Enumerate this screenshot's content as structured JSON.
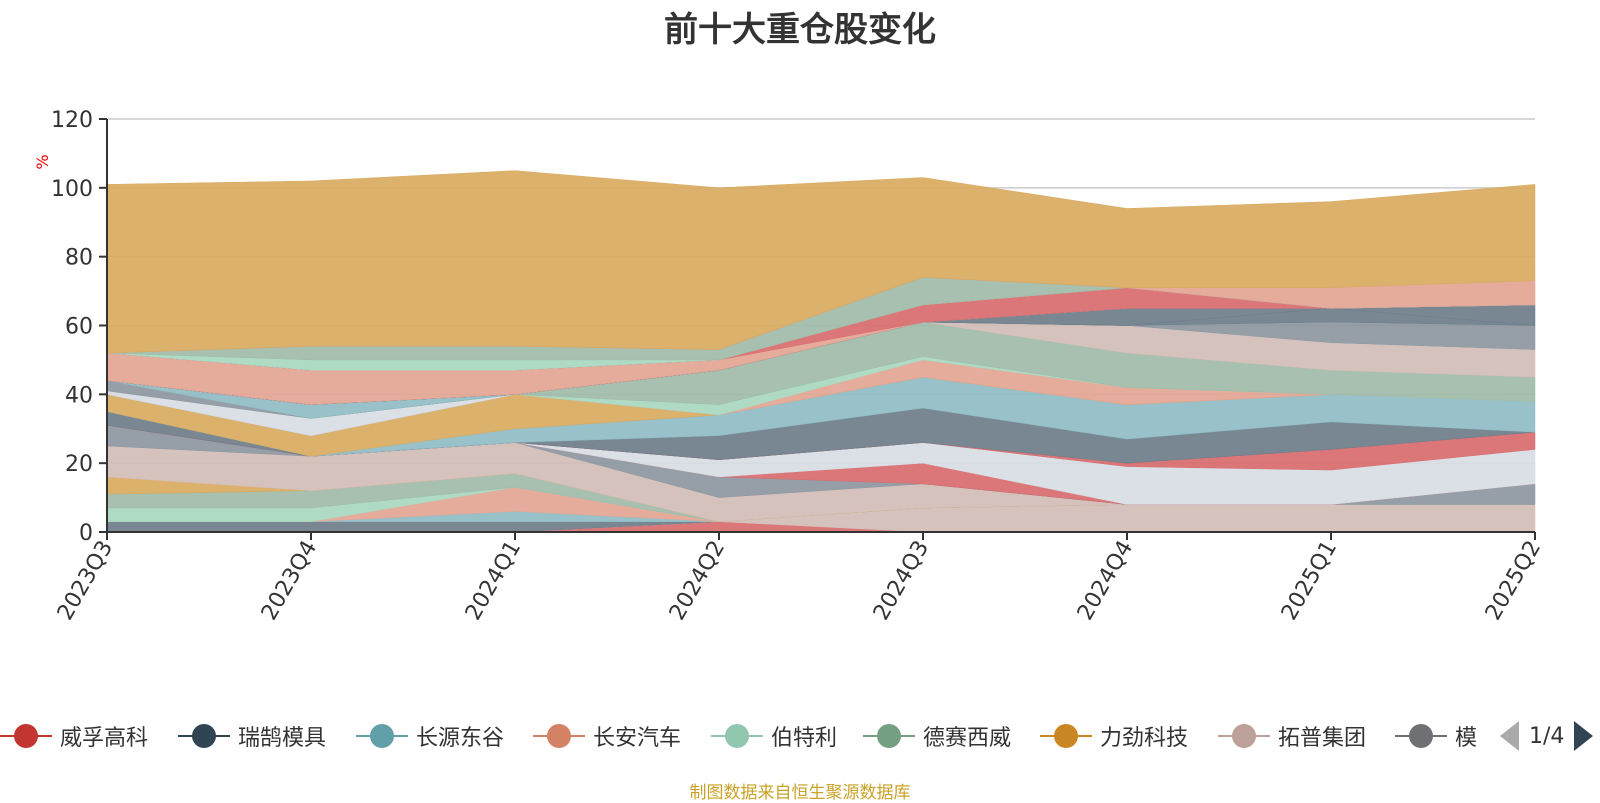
{
  "chart_data": {
    "type": "area",
    "title": "前十大重仓股变化",
    "ylabel": "%",
    "xlabel": "",
    "ylim": [
      0,
      120
    ],
    "yticks": [
      0,
      20,
      40,
      60,
      80,
      100,
      120
    ],
    "stacked": true,
    "grid": true,
    "categories": [
      "2023Q3",
      "2023Q4",
      "2024Q1",
      "2024Q2",
      "2024Q3",
      "2024Q4",
      "2025Q1",
      "2025Q2"
    ],
    "series": [
      {
        "name": "威孚高科",
        "color": "#d86b6e",
        "values": [
          0,
          0,
          0,
          3,
          0,
          0,
          0,
          0
        ]
      },
      {
        "name": "拓普集团",
        "color": "#d3bdb7",
        "values": [
          0,
          0,
          0,
          0,
          7,
          8,
          8,
          8
        ]
      },
      {
        "name": "瑞鹄模具",
        "color": "#6e7d8a",
        "values": [
          3,
          3,
          3,
          0,
          0,
          0,
          0,
          0
        ]
      },
      {
        "name": "长源东谷",
        "color": "#8fbcc4",
        "values": [
          0,
          0,
          3,
          0,
          0,
          0,
          0,
          0
        ]
      },
      {
        "name": "长安汽车",
        "color": "#e3a594",
        "values": [
          0,
          0,
          7,
          0,
          0,
          0,
          0,
          0
        ]
      },
      {
        "name": "伯特利",
        "color": "#a8d8c0",
        "values": [
          4,
          4,
          0,
          0,
          0,
          0,
          0,
          0
        ]
      },
      {
        "name": "德赛西威",
        "color": "#9fbba8",
        "values": [
          4,
          5,
          4,
          0,
          0,
          0,
          0,
          0
        ]
      },
      {
        "name": "力劲科技",
        "color": "#d9aa60",
        "values": [
          5,
          0,
          0,
          0,
          0,
          0,
          0,
          0
        ]
      },
      {
        "name": "拓普集团",
        "color": "#d3bdb7",
        "values": [
          9,
          10,
          9,
          7,
          7,
          0,
          0,
          0
        ]
      },
      {
        "name": "模具",
        "color": "#8d979f",
        "values": [
          6,
          0,
          0,
          6,
          0,
          0,
          0,
          6
        ]
      },
      {
        "name": "威孚高科",
        "color": "#d86b6e",
        "values": [
          0,
          0,
          0,
          0,
          6,
          0,
          0,
          0
        ]
      },
      {
        "name": "",
        "color": "#d7dde4",
        "values": [
          0,
          0,
          0,
          5,
          6,
          11,
          10,
          10
        ]
      },
      {
        "name": "威孚高科",
        "color": "#d86b6e",
        "values": [
          0,
          0,
          0,
          0,
          0,
          1,
          6,
          5
        ]
      },
      {
        "name": "瑞鹄模具",
        "color": "#6e7d8a",
        "values": [
          4,
          0,
          0,
          7,
          10,
          7,
          8,
          0
        ]
      },
      {
        "name": "长源东谷",
        "color": "#8fbcc4",
        "values": [
          0,
          0,
          4,
          6,
          9,
          10,
          8,
          9
        ]
      },
      {
        "name": "力劲科技",
        "color": "#d9aa60",
        "values": [
          5,
          6,
          10,
          0,
          0,
          0,
          0,
          0
        ]
      },
      {
        "name": "长安汽车",
        "color": "#e3a594",
        "values": [
          0,
          0,
          0,
          0,
          5,
          5,
          0,
          0
        ]
      },
      {
        "name": "伯特利",
        "color": "#a8d8c0",
        "values": [
          0,
          0,
          0,
          3,
          1,
          0,
          0,
          0
        ]
      },
      {
        "name": "德赛西威",
        "color": "#9fbba8",
        "values": [
          0,
          0,
          0,
          10,
          10,
          10,
          7,
          7
        ]
      },
      {
        "name": "拓普集团",
        "color": "#d3bdb7",
        "values": [
          0,
          0,
          0,
          0,
          0,
          8,
          8,
          8
        ]
      },
      {
        "name": "",
        "color": "#d7dde4",
        "values": [
          1,
          5,
          0,
          0,
          0,
          0,
          0,
          0
        ]
      },
      {
        "name": "模具",
        "color": "#8d979f",
        "values": [
          3,
          0,
          0,
          0,
          0,
          0,
          6,
          7
        ]
      },
      {
        "name": "长源东谷",
        "color": "#8fbcc4",
        "values": [
          0,
          4,
          0,
          0,
          0,
          0,
          0,
          0
        ]
      },
      {
        "name": "瑞鹄模具",
        "color": "#6e7d8a",
        "values": [
          0,
          0,
          0,
          0,
          0,
          0,
          4,
          0
        ]
      },
      {
        "name": "瑞鹄模具",
        "color": "#6e7d8a",
        "values": [
          0,
          0,
          0,
          0,
          0,
          5,
          0,
          6
        ]
      },
      {
        "name": "长安汽车",
        "color": "#e3a594",
        "values": [
          8,
          10,
          7,
          3,
          0,
          0,
          0,
          0
        ]
      },
      {
        "name": "威孚高科",
        "color": "#d86b6e",
        "values": [
          0,
          0,
          0,
          0,
          5,
          6,
          0,
          0
        ]
      },
      {
        "name": "伯特利",
        "color": "#a8d8c0",
        "values": [
          0,
          3,
          3,
          0,
          0,
          0,
          0,
          0
        ]
      },
      {
        "name": "德赛西威",
        "color": "#9fbba8",
        "values": [
          0,
          4,
          4,
          3,
          8,
          0,
          0,
          0
        ]
      },
      {
        "name": "长安汽车",
        "color": "#e3a594",
        "values": [
          0,
          0,
          0,
          0,
          0,
          0,
          6,
          7
        ]
      },
      {
        "name": "力劲科技",
        "color": "#d9aa60",
        "values": [
          49,
          48,
          51,
          47,
          29,
          23,
          25,
          28
        ]
      }
    ]
  },
  "legend": {
    "items": [
      {
        "label": "威孚高科",
        "color": "#c23531"
      },
      {
        "label": "瑞鹄模具",
        "color": "#2f4554"
      },
      {
        "label": "长源东谷",
        "color": "#61a0a8"
      },
      {
        "label": "长安汽车",
        "color": "#d48265"
      },
      {
        "label": "伯特利",
        "color": "#91c7ae"
      },
      {
        "label": "德赛西威",
        "color": "#749f83"
      },
      {
        "label": "力劲科技",
        "color": "#ca8622"
      },
      {
        "label": "拓普集团",
        "color": "#bda29a"
      },
      {
        "label": "模",
        "color": "#6e7074"
      }
    ],
    "page": "1/4"
  },
  "source_note": "制图数据来自恒生聚源数据库"
}
